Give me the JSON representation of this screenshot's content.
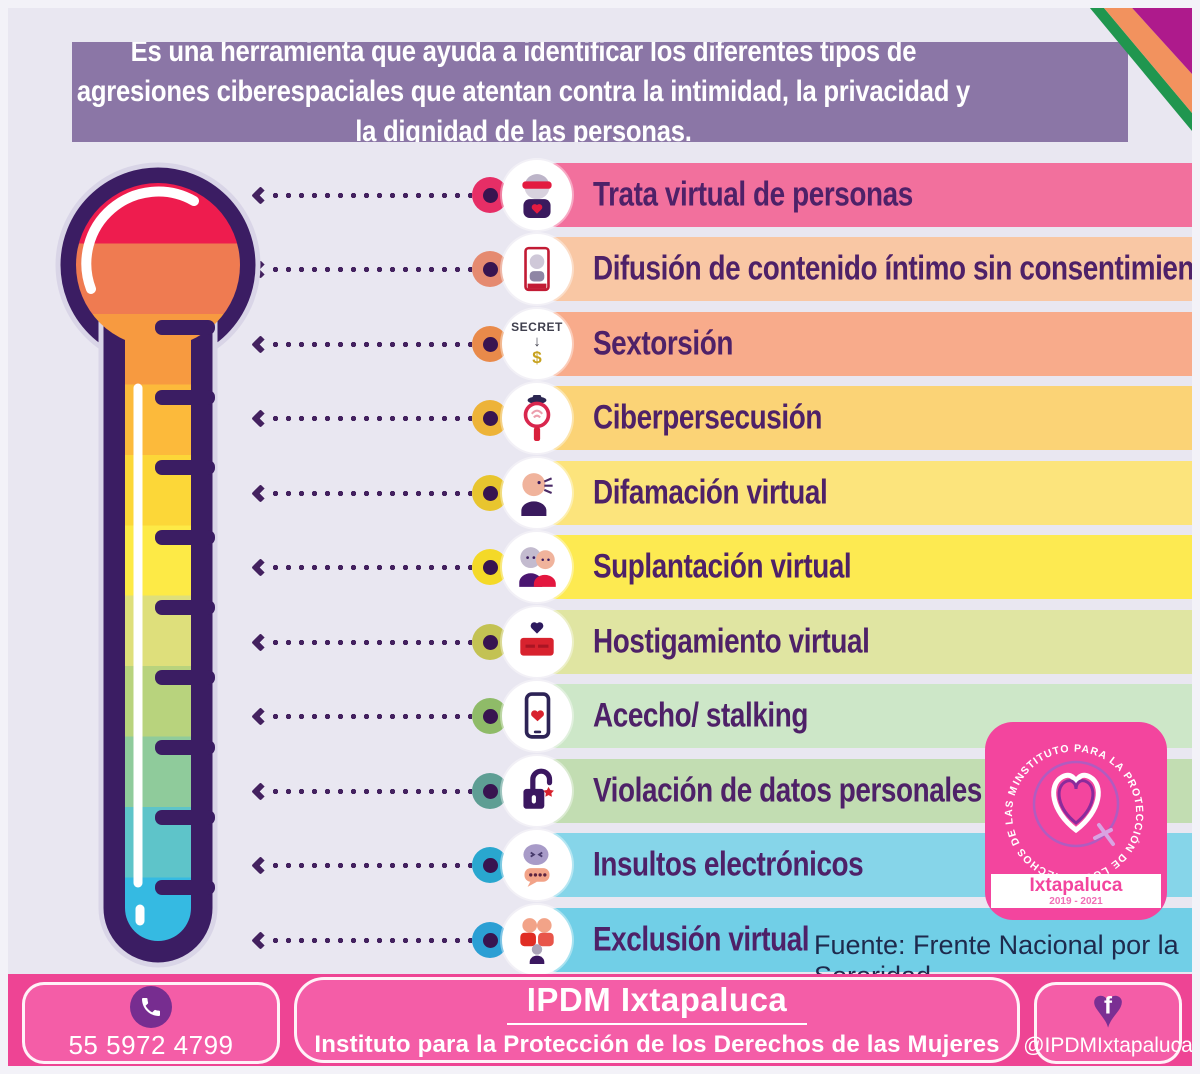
{
  "header": {
    "text": "Es una herramienta que ayuda a identificar los diferentes tipos de agresiones ciberespaciales que atentan contra la intimidad, la privacidad y la dignidad de las personas.",
    "bg_color": "#8b76a6"
  },
  "items": [
    {
      "label": "Trata virtual de personas",
      "icon": "person-blindfold-icon",
      "bar_color": "#f2709d",
      "ring_color": "#e62e66"
    },
    {
      "label": "Difusión de contenido íntimo sin consentimiento-",
      "icon": "phone-person-icon",
      "bar_color": "#f9c7a4",
      "ring_color": "#e58a70"
    },
    {
      "label": "Sextorsión",
      "icon": "secret-money-icon",
      "bar_color": "#f8ab8b",
      "ring_color": "#e98a4a",
      "icon_text": {
        "top": "SECRET",
        "arrow": "↓",
        "bottom": "$"
      }
    },
    {
      "label": "Ciberpersecusión",
      "icon": "magnifier-search-icon",
      "bar_color": "#fbd376",
      "ring_color": "#edb338"
    },
    {
      "label": "Difamación virtual",
      "icon": "person-speaking-icon",
      "bar_color": "#fce47c",
      "ring_color": "#e8c52e"
    },
    {
      "label": "Suplantación virtual",
      "icon": "two-people-icon",
      "bar_color": "#fdea51",
      "ring_color": "#f4d928"
    },
    {
      "label": "Hostigamiento virtual",
      "icon": "heart-stamp-icon",
      "bar_color": "#e0e5a2",
      "ring_color": "#c3c253"
    },
    {
      "label": "Acecho/ stalking",
      "icon": "smartphone-heart-icon",
      "bar_color": "#cde7c8",
      "ring_color": "#8fbb68"
    },
    {
      "label": "Violación de datos personales",
      "icon": "open-padlock-icon",
      "bar_color": "#c2ddb2",
      "ring_color": "#5e9e94"
    },
    {
      "label": "Insultos electrónicos",
      "icon": "face-chat-icon",
      "bar_color": "#86d5e9",
      "ring_color": "#29a7cf"
    },
    {
      "label": "Exclusión virtual",
      "icon": "excluded-group-icon",
      "bar_color": "#71cfe7",
      "ring_color": "#2b9fd4"
    }
  ],
  "thermometer": {
    "outline_color": "#3b1d63",
    "segment_colors": [
      "#ee1c4e",
      "#ef7b51",
      "#f79a40",
      "#fcba3b",
      "#fcd738",
      "#fdea46",
      "#dedf7b",
      "#b8d37d",
      "#8fcb9b",
      "#5ec4c9",
      "#35bae2"
    ]
  },
  "badge": {
    "circular_text": "INSTITUTO PARA LA PROTECCIÓN DE LOS DERECHOS DE LAS MUJERES",
    "city": "Ixtapaluca",
    "years": "2019 - 2021",
    "bg_color": "#f3459e"
  },
  "source_note": "Fuente: Frente Nacional por la Sororidad",
  "footer": {
    "phone": "55 5972 4799",
    "phone_icon": "phone-icon",
    "title": "IPDM Ixtapaluca",
    "subtitle": "Instituto para la Protección de los Derechos de las Mujeres",
    "social_icon": "facebook-heart-icon",
    "handle": "@IPDMIxtapaluca",
    "bg_color": "#ee4494"
  }
}
